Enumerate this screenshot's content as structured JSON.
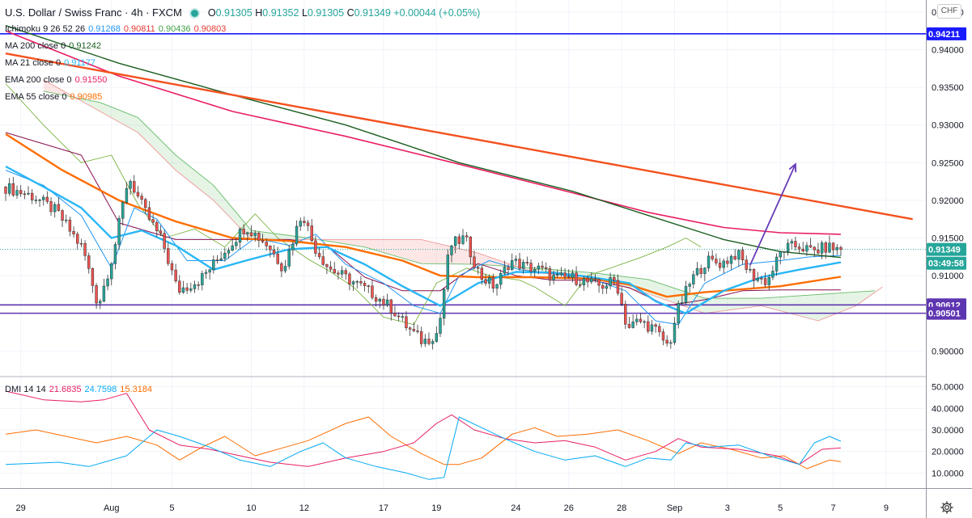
{
  "header": {
    "symbol": "U.S. Dollar / Swiss Franc · 4h · FXCM",
    "o_label": "O",
    "o": "0.91305",
    "h_label": "H",
    "h": "0.91352",
    "l_label": "L",
    "l": "0.91305",
    "c_label": "C",
    "c": "0.91349",
    "change": "+0.00044 (+0.05%)"
  },
  "indicators": [
    {
      "name": "Ichimoku 9 26 52 26",
      "values": [
        {
          "text": "0.91268",
          "color": "#2196f3"
        },
        {
          "text": "0.90811",
          "color": "#e53935"
        },
        {
          "text": "0.90436",
          "color": "#43a047"
        },
        {
          "text": "0.90803",
          "color": "#e53935"
        }
      ]
    },
    {
      "name": "MA 200 close 0",
      "values": [
        {
          "text": "0.91242",
          "color": "#1b5e20"
        }
      ]
    },
    {
      "name": "MA 21 close 0",
      "values": [
        {
          "text": "0.91177",
          "color": "#29b6f6"
        }
      ]
    },
    {
      "name": "EMA 200 close 0",
      "values": [
        {
          "text": "0.91550",
          "color": "#e91e63"
        }
      ]
    },
    {
      "name": "EMA 55 close 0",
      "values": [
        {
          "text": "0.90985",
          "color": "#ff6d00"
        }
      ]
    }
  ],
  "dmi_legend": {
    "name": "DMI 14 14",
    "values": [
      {
        "text": "21.6835",
        "color": "#e91e63"
      },
      {
        "text": "24.7598",
        "color": "#03a9f4"
      },
      {
        "text": "15.3184",
        "color": "#ff6d00"
      }
    ]
  },
  "currency_label": "CHF",
  "colors": {
    "up": "#26a69a",
    "down": "#ef5350",
    "hline": "#1a1aff",
    "support": "#5e35b1",
    "trend": "#f4511e",
    "arrow": "#673ab7"
  },
  "chart_data": {
    "type": "candlestick",
    "title": "U.S. Dollar / Swiss Franc · 4h · FXCM",
    "price_axis": {
      "ticks": [
        "0.94500",
        "0.94000",
        "0.93500",
        "0.93000",
        "0.92500",
        "0.92000",
        "0.91500",
        "0.91000",
        "0.90500",
        "0.90000"
      ],
      "range": [
        0.8966,
        0.9466
      ]
    },
    "price_labels": [
      {
        "text": "0.94211",
        "value": 0.94211,
        "style": "blue"
      },
      {
        "text": "0.91349",
        "value": 0.91349,
        "style": "green"
      },
      {
        "text": "03:49:58",
        "value": 0.91165,
        "style": "green"
      },
      {
        "text": "0.90612",
        "value": 0.90612,
        "style": "purple"
      },
      {
        "text": "0.90501",
        "value": 0.90501,
        "style": "purple"
      }
    ],
    "horizontal_lines": [
      0.94211,
      0.90612,
      0.90501
    ],
    "x_axis_labels": [
      {
        "text": "29",
        "bar": 4
      },
      {
        "text": "Aug",
        "bar": 28
      },
      {
        "text": "5",
        "bar": 44
      },
      {
        "text": "10",
        "bar": 65
      },
      {
        "text": "12",
        "bar": 79
      },
      {
        "text": "17",
        "bar": 100
      },
      {
        "text": "19",
        "bar": 114
      },
      {
        "text": "24",
        "bar": 135
      },
      {
        "text": "26",
        "bar": 149
      },
      {
        "text": "28",
        "bar": 163
      },
      {
        "text": "Sep",
        "bar": 177
      },
      {
        "text": "3",
        "bar": 191
      },
      {
        "text": "5",
        "bar": 205
      },
      {
        "text": "7",
        "bar": 219
      },
      {
        "text": "9",
        "bar": 233
      }
    ],
    "x_range": [
      -1.5,
      243.5
    ],
    "bar_count": 222,
    "price_path": [
      [
        0,
        0.9218
      ],
      [
        8,
        0.9205
      ],
      [
        14,
        0.9185
      ],
      [
        21,
        0.9135
      ],
      [
        25,
        0.906
      ],
      [
        29,
        0.913
      ],
      [
        33,
        0.9232
      ],
      [
        37,
        0.9188
      ],
      [
        42,
        0.9145
      ],
      [
        46,
        0.908
      ],
      [
        52,
        0.9095
      ],
      [
        56,
        0.9118
      ],
      [
        60,
        0.9142
      ],
      [
        64,
        0.9166
      ],
      [
        70,
        0.914
      ],
      [
        74,
        0.911
      ],
      [
        79,
        0.9185
      ],
      [
        82,
        0.914
      ],
      [
        86,
        0.911
      ],
      [
        92,
        0.9093
      ],
      [
        98,
        0.9075
      ],
      [
        103,
        0.9055
      ],
      [
        107,
        0.903
      ],
      [
        111,
        0.9012
      ],
      [
        115,
        0.9025
      ],
      [
        118,
        0.914
      ],
      [
        122,
        0.915
      ],
      [
        126,
        0.91
      ],
      [
        130,
        0.9085
      ],
      [
        134,
        0.912
      ],
      [
        138,
        0.9112
      ],
      [
        142,
        0.9108
      ],
      [
        146,
        0.9096
      ],
      [
        150,
        0.9098
      ],
      [
        154,
        0.9092
      ],
      [
        158,
        0.9086
      ],
      [
        162,
        0.9094
      ],
      [
        165,
        0.903
      ],
      [
        168,
        0.904
      ],
      [
        172,
        0.903
      ],
      [
        176,
        0.9005
      ],
      [
        178,
        0.905
      ],
      [
        182,
        0.9095
      ],
      [
        186,
        0.912
      ],
      [
        190,
        0.9116
      ],
      [
        194,
        0.913
      ],
      [
        198,
        0.91
      ],
      [
        202,
        0.9092
      ],
      [
        206,
        0.9135
      ],
      [
        210,
        0.914
      ],
      [
        214,
        0.9132
      ],
      [
        218,
        0.9138
      ],
      [
        221,
        0.91349
      ]
    ],
    "ma200": [
      [
        0,
        0.9432
      ],
      [
        30,
        0.9382
      ],
      [
        60,
        0.934
      ],
      [
        90,
        0.93
      ],
      [
        120,
        0.925
      ],
      [
        150,
        0.9212
      ],
      [
        170,
        0.918
      ],
      [
        190,
        0.9148
      ],
      [
        205,
        0.9132
      ],
      [
        221,
        0.91242
      ]
    ],
    "ema200": [
      [
        0,
        0.9425
      ],
      [
        30,
        0.9365
      ],
      [
        60,
        0.9318
      ],
      [
        90,
        0.9285
      ],
      [
        120,
        0.9248
      ],
      [
        150,
        0.921
      ],
      [
        170,
        0.9184
      ],
      [
        190,
        0.9164
      ],
      [
        205,
        0.9157
      ],
      [
        221,
        0.9155
      ]
    ],
    "ma21": [
      [
        0,
        0.9245
      ],
      [
        10,
        0.9218
      ],
      [
        20,
        0.919
      ],
      [
        28,
        0.915
      ],
      [
        36,
        0.916
      ],
      [
        45,
        0.914
      ],
      [
        55,
        0.9108
      ],
      [
        65,
        0.9122
      ],
      [
        75,
        0.9135
      ],
      [
        85,
        0.9138
      ],
      [
        95,
        0.9115
      ],
      [
        105,
        0.9086
      ],
      [
        115,
        0.906
      ],
      [
        125,
        0.909
      ],
      [
        135,
        0.9105
      ],
      [
        145,
        0.9104
      ],
      [
        155,
        0.9098
      ],
      [
        165,
        0.909
      ],
      [
        172,
        0.9066
      ],
      [
        180,
        0.905
      ],
      [
        190,
        0.908
      ],
      [
        200,
        0.9098
      ],
      [
        210,
        0.9108
      ],
      [
        221,
        0.91177
      ]
    ],
    "ema55": [
      [
        0,
        0.9288
      ],
      [
        15,
        0.924
      ],
      [
        30,
        0.92
      ],
      [
        45,
        0.9172
      ],
      [
        60,
        0.915
      ],
      [
        75,
        0.9146
      ],
      [
        90,
        0.9138
      ],
      [
        105,
        0.912
      ],
      [
        115,
        0.91
      ],
      [
        125,
        0.9098
      ],
      [
        140,
        0.9098
      ],
      [
        155,
        0.9096
      ],
      [
        165,
        0.9088
      ],
      [
        175,
        0.9072
      ],
      [
        185,
        0.9078
      ],
      [
        195,
        0.9082
      ],
      [
        205,
        0.9086
      ],
      [
        221,
        0.90985
      ]
    ],
    "tenkan": [
      [
        0,
        0.924
      ],
      [
        10,
        0.922
      ],
      [
        20,
        0.918
      ],
      [
        28,
        0.911
      ],
      [
        34,
        0.919
      ],
      [
        40,
        0.9175
      ],
      [
        48,
        0.912
      ],
      [
        58,
        0.912
      ],
      [
        66,
        0.915
      ],
      [
        75,
        0.914
      ],
      [
        82,
        0.9155
      ],
      [
        90,
        0.9115
      ],
      [
        100,
        0.909
      ],
      [
        108,
        0.906
      ],
      [
        115,
        0.905
      ],
      [
        120,
        0.91
      ],
      [
        128,
        0.912
      ],
      [
        136,
        0.9108
      ],
      [
        146,
        0.9102
      ],
      [
        156,
        0.9094
      ],
      [
        164,
        0.908
      ],
      [
        172,
        0.904
      ],
      [
        178,
        0.9035
      ],
      [
        185,
        0.909
      ],
      [
        195,
        0.9115
      ],
      [
        205,
        0.912
      ],
      [
        213,
        0.9125
      ],
      [
        221,
        0.91268
      ]
    ],
    "kijun": [
      [
        0,
        0.929
      ],
      [
        20,
        0.926
      ],
      [
        30,
        0.917
      ],
      [
        45,
        0.9148
      ],
      [
        60,
        0.9148
      ],
      [
        75,
        0.9148
      ],
      [
        85,
        0.914
      ],
      [
        95,
        0.9098
      ],
      [
        105,
        0.908
      ],
      [
        115,
        0.908
      ],
      [
        125,
        0.9116
      ],
      [
        135,
        0.91
      ],
      [
        145,
        0.9094
      ],
      [
        155,
        0.9094
      ],
      [
        165,
        0.9084
      ],
      [
        175,
        0.906
      ],
      [
        185,
        0.9068
      ],
      [
        195,
        0.908
      ],
      [
        205,
        0.9081
      ],
      [
        221,
        0.90811
      ]
    ],
    "cloud_a": [
      [
        10,
        0.9345
      ],
      [
        25,
        0.933
      ],
      [
        35,
        0.931
      ],
      [
        45,
        0.926
      ],
      [
        55,
        0.922
      ],
      [
        65,
        0.916
      ],
      [
        80,
        0.915
      ],
      [
        95,
        0.9138
      ],
      [
        110,
        0.9116
      ],
      [
        125,
        0.9115
      ],
      [
        140,
        0.911
      ],
      [
        155,
        0.9104
      ],
      [
        170,
        0.9095
      ],
      [
        185,
        0.907
      ],
      [
        200,
        0.907
      ],
      [
        215,
        0.9075
      ],
      [
        230,
        0.908
      ]
    ],
    "cloud_b": [
      [
        10,
        0.936
      ],
      [
        25,
        0.9318
      ],
      [
        35,
        0.929
      ],
      [
        45,
        0.924
      ],
      [
        55,
        0.92
      ],
      [
        65,
        0.9148
      ],
      [
        80,
        0.9148
      ],
      [
        95,
        0.9148
      ],
      [
        110,
        0.9148
      ],
      [
        125,
        0.913
      ],
      [
        140,
        0.9104
      ],
      [
        155,
        0.9098
      ],
      [
        170,
        0.9076
      ],
      [
        185,
        0.905
      ],
      [
        200,
        0.906
      ],
      [
        215,
        0.904
      ],
      [
        225,
        0.906
      ],
      [
        232,
        0.9085
      ]
    ],
    "chikou": [
      [
        0,
        0.9355
      ],
      [
        10,
        0.93
      ],
      [
        20,
        0.925
      ],
      [
        28,
        0.926
      ],
      [
        35,
        0.9195
      ],
      [
        42,
        0.915
      ],
      [
        50,
        0.9162
      ],
      [
        58,
        0.9138
      ],
      [
        66,
        0.9182
      ],
      [
        72,
        0.915
      ],
      [
        80,
        0.9122
      ],
      [
        86,
        0.9105
      ],
      [
        92,
        0.9085
      ],
      [
        100,
        0.9045
      ],
      [
        108,
        0.9035
      ],
      [
        114,
        0.909
      ],
      [
        122,
        0.911
      ],
      [
        128,
        0.91
      ],
      [
        136,
        0.9094
      ],
      [
        140,
        0.9085
      ],
      [
        148,
        0.906
      ],
      [
        154,
        0.91
      ],
      [
        160,
        0.911
      ],
      [
        168,
        0.9124
      ],
      [
        175,
        0.9138
      ],
      [
        180,
        0.915
      ],
      [
        184,
        0.9138
      ]
    ],
    "trendline": [
      [
        0,
        0.9395
      ],
      [
        240,
        0.9175
      ]
    ],
    "arrow": [
      [
        197,
        0.9114
      ],
      [
        209,
        0.9248
      ]
    ],
    "dmi": {
      "axis_ticks": [
        "50.0000",
        "40.0000",
        "30.0000",
        "20.0000",
        "10.0000"
      ],
      "range": [
        3,
        54
      ],
      "plus_di": [
        [
          0,
          14
        ],
        [
          14,
          15
        ],
        [
          22,
          13
        ],
        [
          32,
          18
        ],
        [
          40,
          30
        ],
        [
          46,
          27
        ],
        [
          54,
          22
        ],
        [
          62,
          16
        ],
        [
          70,
          13
        ],
        [
          78,
          20
        ],
        [
          84,
          24
        ],
        [
          90,
          17
        ],
        [
          98,
          13
        ],
        [
          106,
          10
        ],
        [
          112,
          7
        ],
        [
          116,
          8
        ],
        [
          120,
          36
        ],
        [
          126,
          31
        ],
        [
          132,
          26
        ],
        [
          140,
          20
        ],
        [
          148,
          16
        ],
        [
          156,
          18
        ],
        [
          164,
          13
        ],
        [
          170,
          17
        ],
        [
          176,
          16
        ],
        [
          180,
          24
        ],
        [
          186,
          22
        ],
        [
          194,
          23
        ],
        [
          202,
          18
        ],
        [
          210,
          14
        ],
        [
          214,
          24
        ],
        [
          218,
          27
        ],
        [
          221,
          24.7598
        ]
      ],
      "minus_di": [
        [
          0,
          48
        ],
        [
          10,
          44
        ],
        [
          20,
          43
        ],
        [
          26,
          44
        ],
        [
          32,
          47
        ],
        [
          38,
          30
        ],
        [
          46,
          23
        ],
        [
          54,
          21
        ],
        [
          62,
          18
        ],
        [
          70,
          15
        ],
        [
          80,
          13
        ],
        [
          90,
          17
        ],
        [
          100,
          20
        ],
        [
          108,
          24
        ],
        [
          114,
          33
        ],
        [
          118,
          37
        ],
        [
          124,
          30
        ],
        [
          132,
          26
        ],
        [
          140,
          24
        ],
        [
          148,
          25
        ],
        [
          156,
          22
        ],
        [
          164,
          16
        ],
        [
          172,
          20
        ],
        [
          178,
          26
        ],
        [
          184,
          22
        ],
        [
          194,
          21
        ],
        [
          204,
          18
        ],
        [
          210,
          14
        ],
        [
          216,
          21
        ],
        [
          221,
          21.6835
        ]
      ],
      "adx": [
        [
          0,
          28
        ],
        [
          8,
          30
        ],
        [
          16,
          27
        ],
        [
          24,
          24
        ],
        [
          32,
          27
        ],
        [
          40,
          23
        ],
        [
          46,
          16
        ],
        [
          52,
          22
        ],
        [
          58,
          27
        ],
        [
          66,
          18
        ],
        [
          74,
          22
        ],
        [
          80,
          25
        ],
        [
          90,
          33
        ],
        [
          96,
          36
        ],
        [
          102,
          27
        ],
        [
          110,
          19
        ],
        [
          116,
          14
        ],
        [
          120,
          14
        ],
        [
          126,
          17
        ],
        [
          134,
          28
        ],
        [
          140,
          31
        ],
        [
          146,
          27
        ],
        [
          154,
          28
        ],
        [
          162,
          30
        ],
        [
          170,
          25
        ],
        [
          178,
          19
        ],
        [
          184,
          24
        ],
        [
          192,
          21
        ],
        [
          200,
          17
        ],
        [
          206,
          18
        ],
        [
          212,
          12
        ],
        [
          218,
          16
        ],
        [
          221,
          15.3184
        ]
      ]
    }
  }
}
